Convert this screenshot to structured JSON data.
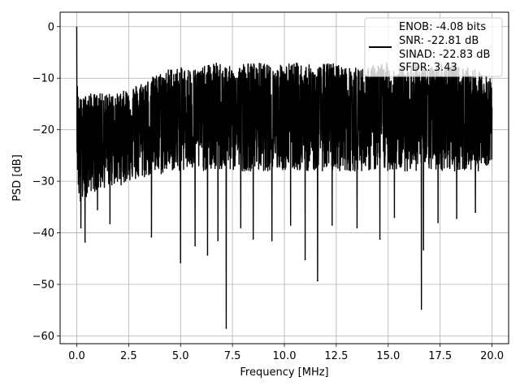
{
  "chart_data": {
    "type": "line",
    "xlabel": "Frequency [MHz]",
    "ylabel": "PSD [dB]",
    "xlim": [
      -0.8,
      20.8
    ],
    "ylim": [
      -61.5,
      2.8
    ],
    "x_ticks": [
      0.0,
      2.5,
      5.0,
      7.5,
      10.0,
      12.5,
      15.0,
      17.5,
      20.0
    ],
    "x_tick_labels": [
      "0.0",
      "2.5",
      "5.0",
      "7.5",
      "10.0",
      "12.5",
      "15.0",
      "17.5",
      "20.0"
    ],
    "y_ticks": [
      0,
      -10,
      -20,
      -30,
      -40,
      -50,
      -60
    ],
    "y_tick_labels": [
      "0",
      "−10",
      "−20",
      "−30",
      "−40",
      "−50",
      "−60"
    ],
    "grid": true,
    "legend_position": "top-right",
    "legend_lines": [
      "ENOB: -4.08 bits",
      "SNR: -22.81 dB",
      "SINAD: -22.83 dB",
      "SFDR: 3.43"
    ],
    "series": [
      {
        "color": "#000000",
        "x": [
          0.0,
          0.01,
          0.03,
          0.05,
          0.08,
          0.12,
          0.2,
          0.3,
          0.4,
          0.5,
          0.7,
          1.0,
          1.5,
          2.0,
          2.5,
          3.0,
          3.5,
          4.0,
          4.5,
          5.0,
          5.5,
          6.0,
          6.5,
          7.0,
          7.5,
          8.0,
          8.5,
          9.0,
          9.5,
          10.0,
          10.5,
          11.0,
          11.5,
          12.0,
          12.5,
          13.0,
          13.5,
          14.0,
          14.5,
          15.0,
          15.5,
          16.0,
          16.5,
          17.0,
          17.5,
          18.0,
          18.5,
          19.0,
          19.5,
          20.0
        ],
        "y_max": [
          0,
          -5,
          -11,
          -12,
          -13,
          -13,
          -14,
          -14,
          -13,
          -13,
          -13,
          -13,
          -13,
          -13,
          -12,
          -11,
          -10,
          -9,
          -8,
          -8,
          -8,
          -8,
          -7,
          -7,
          -8,
          -7,
          -7,
          -7,
          -8,
          -7,
          -7,
          -7,
          -8,
          -7,
          -7,
          -8,
          -8,
          -8,
          -7,
          -7,
          -8,
          -7,
          -7,
          -8,
          -7,
          -7,
          -8,
          -8,
          -9,
          -10
        ],
        "y_mean": [
          0,
          -14,
          -19,
          -20,
          -21,
          -21,
          -21,
          -20,
          -20,
          -20,
          -20,
          -20,
          -19,
          -19,
          -18,
          -18,
          -18,
          -17,
          -17,
          -17,
          -17,
          -17,
          -17,
          -17,
          -17,
          -17,
          -17,
          -17,
          -17,
          -17,
          -17,
          -17,
          -17,
          -17,
          -17,
          -17,
          -17,
          -17,
          -17,
          -17,
          -17,
          -17,
          -17,
          -17,
          -17,
          -17,
          -17,
          -18,
          -18,
          -20
        ],
        "y_min": [
          0,
          -23,
          -28,
          -30,
          -32,
          -34,
          -36,
          -34,
          -33,
          -33,
          -32,
          -32,
          -31,
          -31,
          -30,
          -30,
          -29,
          -29,
          -28,
          -28,
          -28,
          -28,
          -28,
          -28,
          -28,
          -28,
          -28,
          -28,
          -28,
          -28,
          -28,
          -28,
          -28,
          -28,
          -28,
          -28,
          -28,
          -28,
          -28,
          -28,
          -28,
          -28,
          -28,
          -28,
          -28,
          -28,
          -28,
          -28,
          -28,
          -26
        ],
        "spikes": [
          {
            "x": 0.4,
            "y": -41.8
          },
          {
            "x": 0.2,
            "y": -39.0
          },
          {
            "x": 1.0,
            "y": -35.5
          },
          {
            "x": 1.6,
            "y": -38.2
          },
          {
            "x": 3.6,
            "y": -40.8
          },
          {
            "x": 5.0,
            "y": -45.8
          },
          {
            "x": 5.7,
            "y": -42.5
          },
          {
            "x": 6.3,
            "y": -44.3
          },
          {
            "x": 6.8,
            "y": -41.5
          },
          {
            "x": 7.2,
            "y": -58.5
          },
          {
            "x": 7.9,
            "y": -39.0
          },
          {
            "x": 8.5,
            "y": -41.2
          },
          {
            "x": 9.4,
            "y": -41.5
          },
          {
            "x": 10.3,
            "y": -38.5
          },
          {
            "x": 11.0,
            "y": -45.2
          },
          {
            "x": 11.6,
            "y": -49.3
          },
          {
            "x": 12.3,
            "y": -38.5
          },
          {
            "x": 13.5,
            "y": -39.0
          },
          {
            "x": 14.6,
            "y": -41.2
          },
          {
            "x": 15.3,
            "y": -37.0
          },
          {
            "x": 16.6,
            "y": -54.8
          },
          {
            "x": 16.7,
            "y": -43.3
          },
          {
            "x": 17.4,
            "y": -38.0
          },
          {
            "x": 18.3,
            "y": -37.2
          },
          {
            "x": 19.2,
            "y": -36.0
          }
        ]
      }
    ]
  }
}
